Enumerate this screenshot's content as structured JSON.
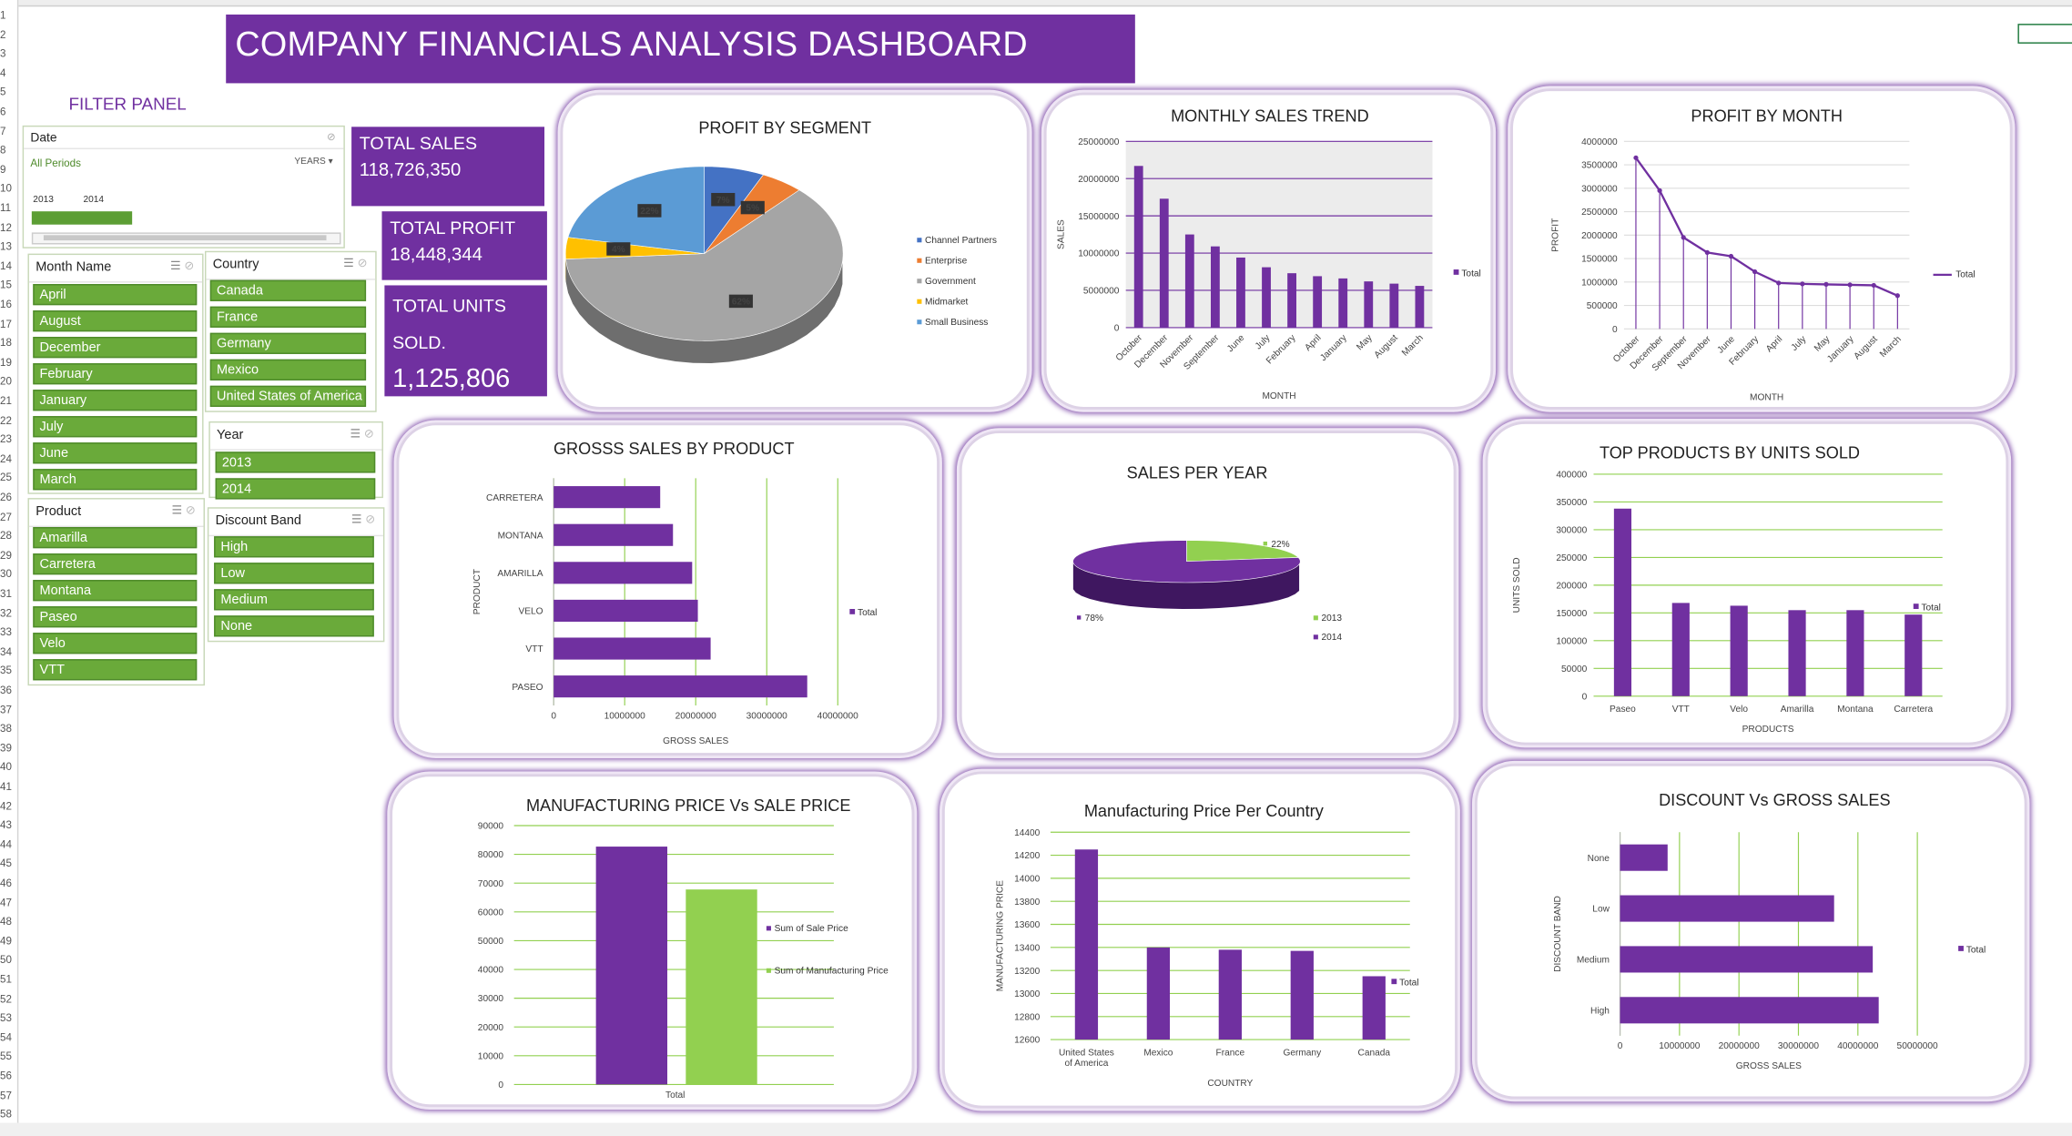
{
  "title": "COMPANY FINANCIALS ANALYSIS DASHBOARD",
  "filter_panel_label": "FILTER PANEL",
  "row_numbers": [
    "1",
    "2",
    "3",
    "4",
    "5",
    "6",
    "7",
    "8",
    "9",
    "10",
    "11",
    "12",
    "13",
    "14",
    "15",
    "16",
    "17",
    "18",
    "19",
    "20",
    "21",
    "22",
    "23",
    "24",
    "25",
    "26",
    "27",
    "28",
    "29",
    "30",
    "31",
    "32",
    "33",
    "34",
    "35",
    "36",
    "37",
    "38",
    "39",
    "40",
    "41",
    "42",
    "43",
    "44",
    "45",
    "46",
    "47",
    "48",
    "49",
    "50",
    "51",
    "52",
    "53",
    "54",
    "55",
    "56",
    "57",
    "58"
  ],
  "kpis": {
    "total_sales_label": "TOTAL SALES",
    "total_sales_value": "118,726,350",
    "total_profit_label": "TOTAL PROFIT",
    "total_profit_value": "18,448,344",
    "total_units_label": "TOTAL UNITS",
    "total_units_label2": "SOLD.",
    "total_units_value": "1,125,806"
  },
  "timeline": {
    "title": "Date",
    "all_periods": "All Periods",
    "level": "YEARS",
    "years": [
      "2013",
      "2014"
    ]
  },
  "slicers": {
    "month": {
      "title": "Month Name",
      "items": [
        "April",
        "August",
        "December",
        "February",
        "January",
        "July",
        "June",
        "March"
      ]
    },
    "country": {
      "title": "Country",
      "items": [
        "Canada",
        "France",
        "Germany",
        "Mexico",
        "United States of America"
      ]
    },
    "year": {
      "title": "Year",
      "items": [
        "2013",
        "2014"
      ]
    },
    "product": {
      "title": "Product",
      "items": [
        "Amarilla",
        "Carretera",
        "Montana",
        "Paseo",
        "Velo",
        "VTT"
      ]
    },
    "discount": {
      "title": "Discount Band",
      "items": [
        "High",
        "Low",
        "Medium",
        "None"
      ]
    }
  },
  "colors": {
    "purple": "#7030a0",
    "green": "#92d050",
    "slicer_green": "#6aaa3a",
    "blue": "#4472c4",
    "orange": "#ed7d31",
    "gray": "#a5a5a5",
    "yellow": "#ffc000",
    "lightblue": "#5b9bd5"
  },
  "chart_data": [
    {
      "id": "profit_by_segment",
      "type": "pie",
      "title": "PROFIT BY SEGMENT",
      "labels": [
        "Channel Partners",
        "Enterprise",
        "Government",
        "Midmarket",
        "Small Business"
      ],
      "percent_labels": [
        "7%",
        "5%",
        "62%",
        "4%",
        "22%"
      ],
      "values": [
        7,
        5,
        62,
        4,
        22
      ],
      "colors": [
        "#4472c4",
        "#ed7d31",
        "#a5a5a5",
        "#ffc000",
        "#5b9bd5"
      ],
      "legend": "right"
    },
    {
      "id": "monthly_sales_trend",
      "type": "bar",
      "title": "MONTHLY SALES TREND",
      "categories": [
        "October",
        "December",
        "November",
        "September",
        "June",
        "July",
        "February",
        "April",
        "January",
        "May",
        "August",
        "March"
      ],
      "series": [
        {
          "name": "Total",
          "values": [
            21700000,
            17300000,
            12500000,
            10900000,
            9400000,
            8100000,
            7300000,
            6900000,
            6600000,
            6200000,
            5900000,
            5600000
          ]
        }
      ],
      "xlabel": "MONTH",
      "ylabel": "SALES",
      "ylim": [
        0,
        25000000
      ],
      "yticks": [
        "0",
        "5000000",
        "10000000",
        "15000000",
        "20000000",
        "25000000"
      ]
    },
    {
      "id": "profit_by_month",
      "type": "line",
      "title": "PROFIT BY MONTH",
      "categories": [
        "October",
        "December",
        "September",
        "November",
        "June",
        "February",
        "April",
        "July",
        "May",
        "January",
        "August",
        "March"
      ],
      "series": [
        {
          "name": "Total",
          "values": [
            3650000,
            2950000,
            1950000,
            1630000,
            1550000,
            1220000,
            980000,
            960000,
            950000,
            940000,
            930000,
            710000
          ]
        }
      ],
      "xlabel": "MONTH",
      "ylabel": "PROFIT",
      "ylim": [
        0,
        4000000
      ],
      "yticks": [
        "0",
        "500000",
        "1000000",
        "1500000",
        "2000000",
        "2500000",
        "3000000",
        "3500000",
        "4000000"
      ]
    },
    {
      "id": "gross_sales_by_product",
      "type": "bar",
      "orientation": "horizontal",
      "title": "GROSSS SALES BY PRODUCT",
      "categories": [
        "CARRETERA",
        "MONTANA",
        "AMARILLA",
        "VELO",
        "VTT",
        "PASEO"
      ],
      "series": [
        {
          "name": "Total",
          "values": [
            15000000,
            16800000,
            19500000,
            20300000,
            22100000,
            35700000
          ]
        }
      ],
      "xlabel": "GROSS SALES",
      "ylabel": "PRODUCT",
      "xlim": [
        0,
        40000000
      ],
      "xticks": [
        "0",
        "10000000",
        "20000000",
        "30000000",
        "40000000"
      ]
    },
    {
      "id": "sales_per_year",
      "type": "pie",
      "title": "SALES PER YEAR",
      "labels": [
        "2013",
        "2014"
      ],
      "percent_labels": [
        "22%",
        "78%"
      ],
      "values": [
        22,
        78
      ],
      "colors": [
        "#92d050",
        "#7030a0"
      ],
      "legend": "right"
    },
    {
      "id": "top_products_units",
      "type": "bar",
      "title": "TOP PRODUCTS BY UNITS SOLD",
      "categories": [
        "Paseo",
        "VTT",
        "Velo",
        "Amarilla",
        "Montana",
        "Carretera"
      ],
      "series": [
        {
          "name": "Total",
          "values": [
            338000,
            168000,
            163000,
            155000,
            155000,
            147000
          ]
        }
      ],
      "xlabel": "PRODUCTS",
      "ylabel": "UNITS SOLD",
      "ylim": [
        0,
        400000
      ],
      "yticks": [
        "0",
        "50000",
        "100000",
        "150000",
        "200000",
        "250000",
        "300000",
        "350000",
        "400000"
      ]
    },
    {
      "id": "mfg_vs_sale_price",
      "type": "bar",
      "title": "MANUFACTURING PRICE Vs SALE PRICE",
      "categories": [
        "Total"
      ],
      "series": [
        {
          "name": "Sum of  Sale Price",
          "values": [
            82700
          ]
        },
        {
          "name": "Sum of  Manufacturing Price",
          "values": [
            67800
          ]
        }
      ],
      "ylim": [
        0,
        90000
      ],
      "yticks": [
        "0",
        "10000",
        "20000",
        "30000",
        "40000",
        "50000",
        "60000",
        "70000",
        "80000",
        "90000"
      ]
    },
    {
      "id": "mfg_price_per_country",
      "type": "bar",
      "title": "Manufacturing Price Per Country",
      "categories": [
        "United States of America",
        "Mexico",
        "France",
        "Germany",
        "Canada"
      ],
      "category_lines": [
        [
          "United States",
          "of America"
        ],
        [
          "Mexico"
        ],
        [
          "France"
        ],
        [
          "Germany"
        ],
        [
          "Canada"
        ]
      ],
      "series": [
        {
          "name": "Total",
          "values": [
            14250,
            13400,
            13380,
            13370,
            13150
          ]
        }
      ],
      "xlabel": "COUNTRY",
      "ylabel": "MANUFACTURING PRICE",
      "ylim": [
        12600,
        14400
      ],
      "yticks": [
        "12600",
        "12800",
        "13000",
        "13200",
        "13400",
        "13600",
        "13800",
        "14000",
        "14200",
        "14400"
      ]
    },
    {
      "id": "discount_vs_gross_sales",
      "type": "bar",
      "orientation": "horizontal",
      "title": "DISCOUNT Vs GROSS SALES",
      "categories": [
        "None",
        "Low",
        "Medium",
        "High"
      ],
      "series": [
        {
          "name": "Total",
          "values": [
            8000000,
            36000000,
            42500000,
            43500000
          ]
        }
      ],
      "xlabel": "GROSS SALES",
      "ylabel": "DISCOUNT BAND",
      "xlim": [
        0,
        50000000
      ],
      "xticks": [
        "0",
        "10000000",
        "20000000",
        "30000000",
        "40000000",
        "50000000"
      ]
    }
  ]
}
